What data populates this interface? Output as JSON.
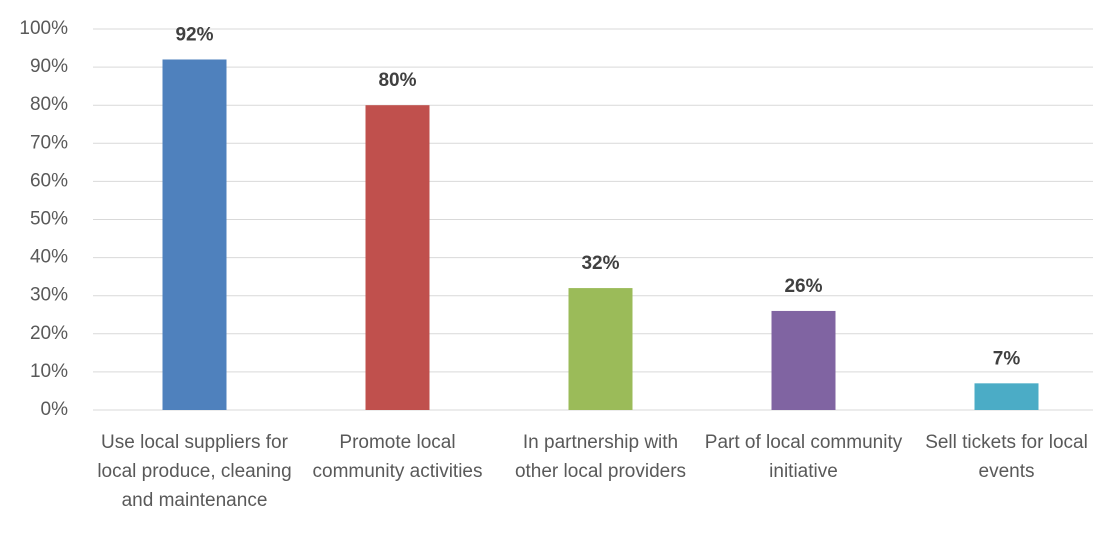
{
  "chart_data": {
    "type": "bar",
    "categories": [
      "Use local suppliers for local produce, cleaning and maintenance",
      "Promote local community activities",
      "In partnership with other local providers",
      "Part of local community initiative",
      "Sell tickets for local events"
    ],
    "values": [
      92,
      80,
      32,
      26,
      7
    ],
    "value_labels": [
      "92%",
      "80%",
      "32%",
      "26%",
      "7%"
    ],
    "colors": [
      "#4f81bd",
      "#c0504d",
      "#9bbb59",
      "#8064a2",
      "#4bacc6"
    ],
    "ylim": [
      0,
      100
    ],
    "yticks": [
      {
        "value": 0,
        "label": "0%"
      },
      {
        "value": 10,
        "label": "10%"
      },
      {
        "value": 20,
        "label": "20%"
      },
      {
        "value": 30,
        "label": "30%"
      },
      {
        "value": 40,
        "label": "40%"
      },
      {
        "value": 50,
        "label": "50%"
      },
      {
        "value": 60,
        "label": "60%"
      },
      {
        "value": 70,
        "label": "70%"
      },
      {
        "value": 80,
        "label": "80%"
      },
      {
        "value": 90,
        "label": "90%"
      },
      {
        "value": 100,
        "label": "100%"
      }
    ],
    "grid": true
  }
}
